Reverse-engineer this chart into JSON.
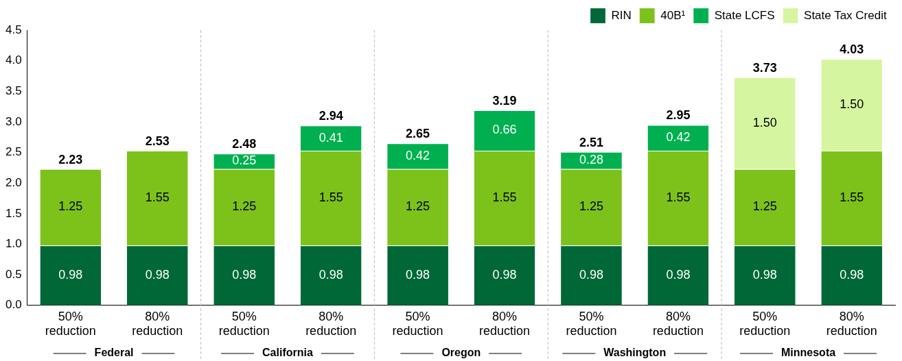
{
  "chart_data": {
    "type": "bar",
    "stacked": true,
    "categories": [
      "50% reduction",
      "80% reduction",
      "50% reduction",
      "80% reduction",
      "50% reduction",
      "80% reduction",
      "50% reduction",
      "80% reduction",
      "50% reduction",
      "80% reduction"
    ],
    "series": [
      {
        "name": "RIN",
        "color": "#006837",
        "values": [
          0.98,
          0.98,
          0.98,
          0.98,
          0.98,
          0.98,
          0.98,
          0.98,
          0.98,
          0.98
        ],
        "value_labels": [
          "0.98",
          "0.98",
          "0.98",
          "0.98",
          "0.98",
          "0.98",
          "0.98",
          "0.98",
          "0.98",
          "0.98"
        ]
      },
      {
        "name": "40B¹",
        "color": "#7dc11b",
        "values": [
          1.25,
          1.55,
          1.25,
          1.55,
          1.25,
          1.55,
          1.25,
          1.55,
          1.25,
          1.55
        ],
        "value_labels": [
          "1.25",
          "1.55",
          "1.25",
          "1.55",
          "1.25",
          "1.55",
          "1.25",
          "1.55",
          "1.25",
          "1.55"
        ]
      },
      {
        "name": "State LCFS",
        "color": "#00b050",
        "values": [
          null,
          null,
          0.25,
          0.41,
          0.42,
          0.66,
          0.28,
          0.42,
          null,
          null
        ],
        "value_labels": [
          null,
          null,
          "0.25",
          "0.41",
          "0.42",
          "0.66",
          "0.28",
          "0.42",
          null,
          null
        ]
      },
      {
        "name": "State Tax Credit",
        "color": "#d6f5a0",
        "values": [
          null,
          null,
          null,
          null,
          null,
          null,
          null,
          null,
          1.5,
          1.5
        ],
        "value_labels": [
          null,
          null,
          null,
          null,
          null,
          null,
          null,
          null,
          "1.50",
          "1.50"
        ]
      }
    ],
    "totals": [
      "2.23",
      "2.53",
      "2.48",
      "2.94",
      "2.65",
      "3.19",
      "2.51",
      "2.95",
      "3.73",
      "4.03"
    ],
    "annotations": [
      "Federal",
      "California",
      "Oregon",
      "Washington",
      "Minnesota"
    ],
    "ylim": [
      0,
      4.5
    ],
    "yticks": [
      {
        "value": 0,
        "label": "0.0"
      },
      {
        "value": 0.5,
        "label": "0.5"
      },
      {
        "value": 1,
        "label": "1.0"
      },
      {
        "value": 1.5,
        "label": "1.5"
      },
      {
        "value": 2,
        "label": "2.0"
      },
      {
        "value": 2.5,
        "label": "2.5"
      },
      {
        "value": 3,
        "label": "3.0"
      },
      {
        "value": 3.5,
        "label": "3.5"
      },
      {
        "value": 4,
        "label": "4.0"
      },
      {
        "value": 4.5,
        "label": "4.5"
      }
    ],
    "grid": false,
    "legend": "top right"
  }
}
